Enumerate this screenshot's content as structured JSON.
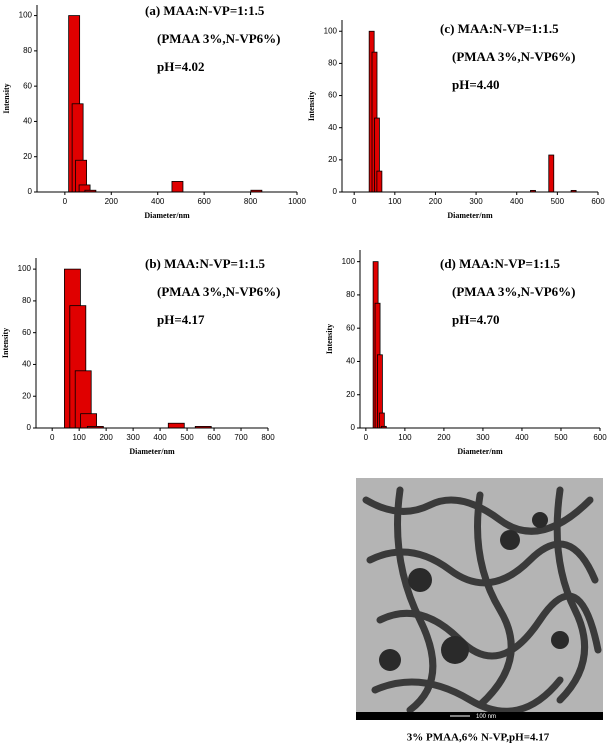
{
  "chart_data": [
    {
      "type": "bar",
      "x_label": "Diameter/nm",
      "y_label": "Intensity",
      "annotations": [
        "(a) MAA:N-VP=1:1.5",
        "(PMAA 3%,N-VP6%)",
        "pH=4.02"
      ],
      "x": [
        40,
        55,
        70,
        85,
        110,
        485,
        825
      ],
      "values": [
        100,
        50,
        18,
        4,
        1,
        6,
        1
      ],
      "color": "#e00000",
      "xlim": [
        -120,
        1000
      ],
      "xticks": [
        0,
        200,
        400,
        600,
        800,
        1000
      ],
      "ylim": [
        0,
        106
      ],
      "yticks": [
        0,
        20,
        40,
        60,
        80,
        100
      ]
    },
    {
      "type": "bar",
      "x_label": "Diameter/nm",
      "y_label": "Intensity",
      "annotations": [
        "(c) MAA:N-VP=1:1.5",
        "(PMAA 3%,N-VP6%)",
        "pH=4.40"
      ],
      "x": [
        43,
        50,
        56,
        62,
        440,
        485,
        540
      ],
      "values": [
        100,
        87,
        46,
        13,
        1,
        23,
        1
      ],
      "color": "#e00000",
      "xlim": [
        -30,
        600
      ],
      "xticks": [
        0,
        100,
        200,
        300,
        400,
        500,
        600
      ],
      "ylim": [
        0,
        107
      ],
      "yticks": [
        0,
        20,
        40,
        60,
        80,
        100
      ]
    },
    {
      "type": "bar",
      "x_label": "Diameter/nm",
      "y_label": "Intensity",
      "annotations": [
        "(b) MAA:N-VP=1:1.5",
        "(PMAA 3%,N-VP6%)",
        "pH=4.17"
      ],
      "x": [
        75,
        95,
        115,
        135,
        160,
        460,
        560
      ],
      "values": [
        100,
        77,
        36,
        9,
        1,
        3,
        1
      ],
      "color": "#e00000",
      "xlim": [
        -60,
        800
      ],
      "xticks": [
        0,
        100,
        200,
        300,
        400,
        500,
        600,
        700,
        800
      ],
      "ylim": [
        0,
        107
      ],
      "yticks": [
        0,
        20,
        40,
        60,
        80,
        100
      ]
    },
    {
      "type": "bar",
      "x_label": "Diameter/nm",
      "y_label": "Intensity",
      "annotations": [
        "(d) MAA:N-VP=1:1.5",
        "(PMAA 3%,N-VP6%)",
        "pH=4.70"
      ],
      "x": [
        25,
        30,
        36,
        41,
        46
      ],
      "values": [
        100,
        75,
        44,
        9,
        1
      ],
      "color": "#e00000",
      "xlim": [
        -15,
        600
      ],
      "xticks": [
        0,
        100,
        200,
        300,
        400,
        500,
        600
      ],
      "ylim": [
        0,
        107
      ],
      "yticks": [
        0,
        20,
        40,
        60,
        80,
        100
      ]
    }
  ],
  "image": {
    "scale_label": "100 nm",
    "caption": "3% PMAA,6% N-VP,pH=4.17"
  }
}
